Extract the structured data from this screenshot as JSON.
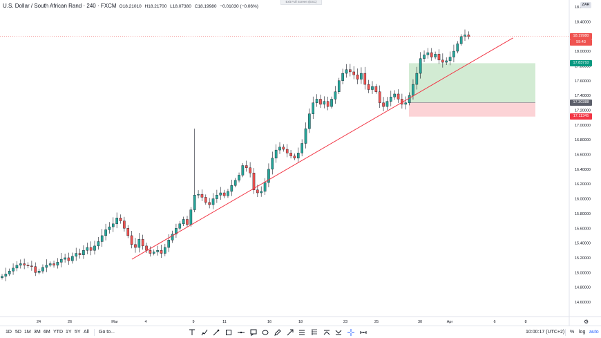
{
  "header": {
    "symbol": "U.S. Dollar / South African Rand",
    "interval": "240",
    "source": "FXCM",
    "open": "O18.21010",
    "high": "H18.21700",
    "low": "L18.07380",
    "close": "C18.19980",
    "change": "−0.01030 (−0.06%)"
  },
  "exit_fullscreen": "Exit Full Screen (ESC)",
  "currency_badge": "ZAR",
  "price_tags": {
    "last": {
      "value": "18.19980",
      "color": "#ef5350"
    },
    "countdown": {
      "value": "59:43",
      "color": "#ef5350"
    },
    "target": {
      "value": "17.83710",
      "color": "#089981"
    },
    "entry": {
      "value": "17.30388",
      "color": "#5d606b"
    },
    "stop": {
      "value": "17.11345",
      "color": "#f23645"
    }
  },
  "chart_data": {
    "type": "candlestick",
    "price_axis": [
      "18.60000",
      "18.40000",
      "18.20000",
      "18.00000",
      "17.80000",
      "17.60000",
      "17.40000",
      "17.20000",
      "17.00000",
      "16.80000",
      "16.60000",
      "16.40000",
      "16.20000",
      "16.00000",
      "15.80000",
      "15.60000",
      "15.40000",
      "15.20000",
      "15.00000",
      "14.80000",
      "14.60000"
    ],
    "ylim": [
      14.55,
      18.65
    ],
    "time_axis": [
      "24",
      "26",
      "Mar",
      "4",
      "9",
      "11",
      "16",
      "18",
      "23",
      "25",
      "30",
      "Apr",
      "6",
      "8"
    ],
    "closes": [
      14.95,
      14.98,
      15.02,
      15.06,
      15.1,
      15.12,
      15.1,
      15.09,
      15.08,
      15.0,
      15.02,
      15.07,
      15.1,
      15.12,
      15.1,
      15.14,
      15.18,
      15.2,
      15.16,
      15.22,
      15.26,
      15.24,
      15.3,
      15.34,
      15.3,
      15.36,
      15.42,
      15.5,
      15.58,
      15.62,
      15.66,
      15.74,
      15.7,
      15.6,
      15.5,
      15.38,
      15.34,
      15.45,
      15.36,
      15.3,
      15.26,
      15.28,
      15.3,
      15.26,
      15.34,
      15.44,
      15.52,
      15.6,
      15.66,
      15.72,
      15.65,
      15.85,
      16.05,
      16.06,
      16.02,
      15.95,
      15.92,
      16.0,
      16.05,
      16.08,
      16.04,
      16.1,
      16.18,
      16.25,
      16.32,
      16.45,
      16.42,
      16.35,
      16.12,
      16.08,
      16.1,
      16.22,
      16.4,
      16.55,
      16.66,
      16.7,
      16.67,
      16.62,
      16.58,
      16.55,
      16.62,
      16.75,
      16.95,
      17.15,
      17.3,
      17.35,
      17.28,
      17.32,
      17.25,
      17.35,
      17.45,
      17.6,
      17.7,
      17.75,
      17.72,
      17.68,
      17.62,
      17.7,
      17.55,
      17.48,
      17.52,
      17.45,
      17.3,
      17.25,
      17.32,
      17.38,
      17.42,
      17.35,
      17.28,
      17.3,
      17.4,
      17.55,
      17.7,
      17.9,
      17.95,
      17.98,
      17.92,
      17.96,
      17.88,
      17.85,
      17.87,
      17.92,
      18.0,
      18.1,
      18.2,
      18.22,
      18.2
    ],
    "trendline": {
      "from": [
        33,
        15.18
      ],
      "to": [
        138,
        18.18
      ]
    },
    "position": {
      "target": 17.8371,
      "entry": 17.30388,
      "stop": 17.11345
    },
    "last_price": 18.1998
  },
  "bottom_bar": {
    "timeframes": [
      "1D",
      "5D",
      "1M",
      "3M",
      "6M",
      "YTD",
      "1Y",
      "5Y",
      "All"
    ],
    "goto": "Go to...",
    "tools": [
      "text-tool-icon",
      "brush-tool-icon",
      "path-tool-icon",
      "rectangle-tool-icon",
      "horizontal-line-icon",
      "callout-icon",
      "ellipse-icon",
      "pencil-icon",
      "arrow-tool-icon",
      "pitchfork-icon",
      "fib-tool-icon",
      "long-position-icon",
      "short-position-icon",
      "crosshair-icon",
      "measure-icon"
    ],
    "clock": "10:00:17 (UTC+2)",
    "percent": "%",
    "log": "log",
    "auto": "auto"
  }
}
